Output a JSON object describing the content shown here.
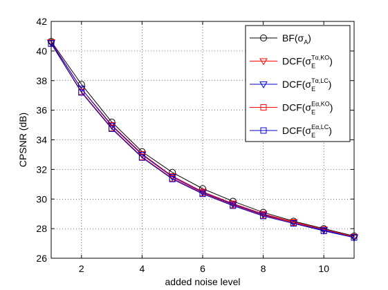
{
  "chart_data": {
    "type": "line",
    "xlabel": "added noise level",
    "ylabel": "CPSNR (dB)",
    "xlim": [
      1,
      11
    ],
    "ylim": [
      26,
      42
    ],
    "xticks": [
      2,
      4,
      6,
      8,
      10
    ],
    "yticks": [
      26,
      28,
      30,
      32,
      34,
      36,
      38,
      40,
      42
    ],
    "grid": true,
    "legend_position": "top-right",
    "x": [
      1,
      2,
      3,
      4,
      5,
      6,
      7,
      8,
      9,
      10,
      11
    ],
    "series": [
      {
        "name": "BF(σA)",
        "legend": {
          "base": "BF(σ",
          "sub": "A",
          "sup": "",
          "close": ")"
        },
        "color": "#000000",
        "marker": "circle",
        "values": [
          40.65,
          37.75,
          35.2,
          33.2,
          31.8,
          30.7,
          29.85,
          29.1,
          28.5,
          28.0,
          27.5
        ]
      },
      {
        "name": "DCF(σE^Tα,KO)",
        "legend": {
          "base": "DCF(σ",
          "sub": "E",
          "sup": "Tα,KO",
          "close": ")"
        },
        "color": "#ff0000",
        "marker": "triangle-down",
        "values": [
          40.6,
          37.45,
          35.0,
          33.05,
          31.55,
          30.5,
          29.7,
          29.0,
          28.45,
          27.95,
          27.45
        ]
      },
      {
        "name": "DCF(σE^Tα,LC)",
        "legend": {
          "base": "DCF(σ",
          "sub": "E",
          "sup": "Tα,LC",
          "close": ")"
        },
        "color": "#0000cc",
        "marker": "triangle-down",
        "values": [
          40.55,
          37.45,
          34.95,
          33.0,
          31.5,
          30.45,
          29.65,
          28.95,
          28.4,
          27.9,
          27.4
        ]
      },
      {
        "name": "DCF(σE^Eα,KO)",
        "legend": {
          "base": "DCF(σ",
          "sub": "E",
          "sup": "Eα,KO",
          "close": ")"
        },
        "color": "#ff0000",
        "marker": "square",
        "values": [
          40.5,
          37.25,
          34.8,
          32.85,
          31.4,
          30.4,
          29.6,
          28.9,
          28.4,
          27.85,
          27.4
        ]
      },
      {
        "name": "DCF(σE^Eα,LC)",
        "legend": {
          "base": "DCF(σ",
          "sub": "E",
          "sup": "Eα,LC",
          "close": ")"
        },
        "color": "#0000cc",
        "marker": "square",
        "values": [
          40.5,
          37.2,
          34.75,
          32.8,
          31.35,
          30.35,
          29.55,
          28.85,
          28.35,
          27.85,
          27.4
        ]
      }
    ]
  }
}
